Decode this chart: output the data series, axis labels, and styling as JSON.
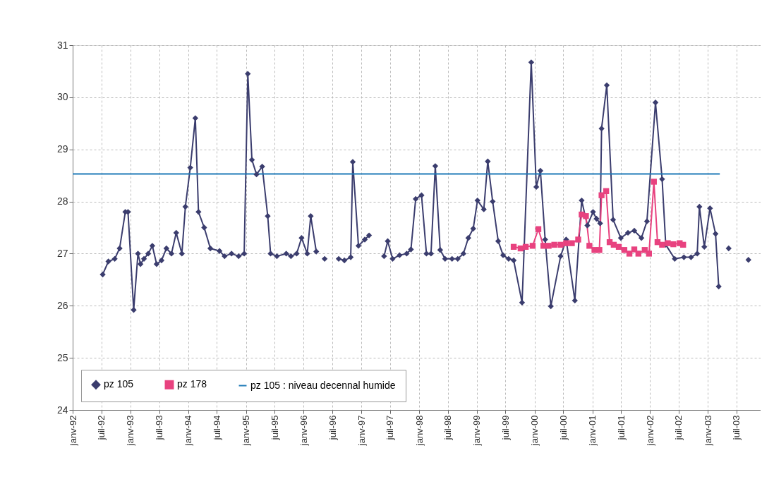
{
  "chart_data": {
    "type": "line",
    "ylim": [
      24,
      31
    ],
    "yticks": [
      24,
      25,
      26,
      27,
      28,
      29,
      30,
      31
    ],
    "xlim": [
      "1992-01-01",
      "2003-12-01"
    ],
    "xticks": [
      {
        "value": "1992-01-01",
        "label": "janv-92"
      },
      {
        "value": "1992-07-01",
        "label": "juil-92"
      },
      {
        "value": "1993-01-01",
        "label": "janv-93"
      },
      {
        "value": "1993-07-01",
        "label": "juil-93"
      },
      {
        "value": "1994-01-01",
        "label": "janv-94"
      },
      {
        "value": "1994-07-01",
        "label": "juil-94"
      },
      {
        "value": "1995-01-01",
        "label": "janv-95"
      },
      {
        "value": "1995-07-01",
        "label": "juil-95"
      },
      {
        "value": "1996-01-01",
        "label": "janv-96"
      },
      {
        "value": "1996-07-01",
        "label": "juil-96"
      },
      {
        "value": "1997-01-01",
        "label": "janv-97"
      },
      {
        "value": "1997-07-01",
        "label": "juil-97"
      },
      {
        "value": "1998-01-01",
        "label": "janv-98"
      },
      {
        "value": "1998-07-01",
        "label": "juil-98"
      },
      {
        "value": "1999-01-01",
        "label": "janv-99"
      },
      {
        "value": "1999-07-01",
        "label": "juil-99"
      },
      {
        "value": "2000-01-01",
        "label": "janv-00"
      },
      {
        "value": "2000-07-01",
        "label": "juil-00"
      },
      {
        "value": "2001-01-01",
        "label": "janv-01"
      },
      {
        "value": "2001-07-01",
        "label": "juil-01"
      },
      {
        "value": "2002-01-01",
        "label": "janv-02"
      },
      {
        "value": "2002-07-01",
        "label": "juil-02"
      },
      {
        "value": "2003-01-01",
        "label": "janv-03"
      },
      {
        "value": "2003-07-01",
        "label": "juil-03"
      }
    ],
    "grid": true,
    "legend": "bottom left",
    "line_style": "solid",
    "series": [
      {
        "name": "pz 105",
        "color": "#3b3d6e",
        "marker": "diamond",
        "x": [
          "1992-07-09",
          "1992-08-14",
          "1992-09-23",
          "1992-10-24",
          "1992-11-29",
          "1992-12-16",
          "1993-01-21",
          "1993-02-17",
          "1993-03-05",
          "1993-03-27",
          "1993-04-23",
          "1993-05-19",
          "1993-06-15",
          "1993-07-16",
          "1993-08-16",
          "1993-09-17",
          "1993-10-17",
          "1993-11-22",
          "1993-12-14",
          "1994-01-14",
          "1994-02-15",
          "1994-03-07",
          "1994-04-12",
          "1994-05-21",
          "1994-07-18",
          "1994-08-19",
          "1994-10-02",
          "1994-11-16",
          "1994-12-21",
          "1995-01-13",
          "1995-02-08",
          "1995-03-09",
          "1995-04-14",
          "1995-05-19",
          "1995-06-06",
          "1995-07-16",
          "1995-09-13",
          "1995-10-13",
          "1995-11-18",
          "1995-12-19",
          "1996-01-24",
          "1996-02-15",
          "1996-03-21",
          "1996-04-15",
          "1996-05-13",
          "1996-06-20",
          "1996-08-10",
          "1996-09-15",
          "1996-10-25",
          "1996-11-07",
          "1996-12-13",
          "1997-01-22",
          "1997-02-18",
          "1997-04-05",
          "1997-05-24",
          "1997-06-16",
          "1997-07-17",
          "1997-08-30",
          "1997-10-14",
          "1997-11-10",
          "1997-12-10",
          "1998-01-16",
          "1998-02-16",
          "1998-03-17",
          "1998-04-13",
          "1998-05-14",
          "1998-06-14",
          "1998-07-28",
          "1998-09-02",
          "1998-10-08",
          "1998-11-08",
          "1998-12-09",
          "1999-01-05",
          "1999-02-14",
          "1999-03-11",
          "1999-04-11",
          "1999-05-16",
          "1999-06-16",
          "1999-07-21",
          "1999-08-22",
          "1999-10-14",
          "1999-12-11",
          "2000-01-12",
          "2000-02-07",
          "2000-03-08",
          "2000-04-13",
          "2000-06-14",
          "2000-07-19",
          "2000-09-12",
          "2000-10-25",
          "2000-11-30",
          "2001-01-05",
          "2001-01-27",
          "2001-02-19",
          "2001-02-28",
          "2001-04-02",
          "2001-05-12",
          "2001-06-30",
          "2001-08-14",
          "2001-09-23",
          "2001-11-07",
          "2001-12-12",
          "2002-02-04",
          "2002-03-18",
          "2002-04-10",
          "2002-06-06",
          "2002-08-03",
          "2002-09-17",
          "2002-10-26",
          "2002-11-09",
          "2002-12-10",
          "2003-01-15",
          "2003-02-19",
          "2003-03-11",
          "2003-04-10",
          "2003-05-13",
          "2003-07-10",
          "2003-09-15"
        ],
        "values": [
          26.6,
          26.85,
          26.9,
          27.1,
          27.8,
          27.8,
          25.92,
          27.0,
          26.8,
          26.9,
          27.0,
          27.15,
          26.8,
          26.87,
          27.1,
          27.0,
          27.4,
          27.0,
          27.9,
          28.65,
          29.6,
          27.8,
          27.5,
          27.1,
          27.05,
          26.95,
          27.0,
          26.95,
          27.0,
          30.45,
          28.8,
          28.52,
          28.67,
          27.72,
          27.0,
          26.95,
          27.0,
          26.95,
          27.0,
          27.3,
          27.0,
          27.72,
          27.04,
          null,
          26.9,
          null,
          26.9,
          26.87,
          26.93,
          28.76,
          27.15,
          27.27,
          27.35,
          null,
          26.95,
          27.24,
          26.9,
          26.97,
          27.0,
          27.08,
          28.05,
          28.12,
          27.0,
          27.0,
          28.68,
          27.07,
          26.9,
          26.9,
          26.9,
          27.0,
          27.3,
          27.48,
          28.02,
          27.85,
          28.77,
          28.0,
          27.24,
          26.97,
          26.9,
          26.87,
          26.06,
          30.67,
          28.28,
          28.59,
          27.27,
          25.99,
          26.95,
          27.27,
          26.1,
          28.02,
          27.54,
          27.8,
          27.67,
          27.58,
          29.4,
          30.23,
          27.65,
          27.3,
          27.4,
          27.44,
          27.3,
          27.62,
          29.9,
          28.43,
          27.17,
          26.9,
          26.93,
          26.93,
          27.0,
          27.9,
          27.13,
          27.87,
          27.38,
          26.37,
          null,
          27.1,
          null,
          26.88
        ]
      },
      {
        "name": "pz 178",
        "color": "#e8427f",
        "marker": "square",
        "x": [
          "1999-08-22",
          "1999-10-05",
          "1999-11-06",
          "1999-12-20",
          "2000-01-25",
          "2000-02-26",
          "2000-03-30",
          "2000-05-05",
          "2000-06-14",
          "2000-07-19",
          "2000-08-24",
          "2000-10-03",
          "2000-10-25",
          "2000-11-21",
          "2000-12-13",
          "2001-01-14",
          "2001-02-14",
          "2001-02-28",
          "2001-03-29",
          "2001-04-20",
          "2001-05-16",
          "2001-06-17",
          "2001-07-22",
          "2001-08-23",
          "2001-09-23",
          "2001-10-19",
          "2001-11-28",
          "2001-12-25",
          "2002-01-25",
          "2002-02-17",
          "2002-03-18",
          "2002-04-23",
          "2002-05-28",
          "2002-07-07",
          "2002-07-29"
        ],
        "values": [
          27.13,
          27.1,
          27.13,
          27.15,
          27.47,
          27.15,
          27.15,
          27.17,
          27.17,
          27.2,
          27.2,
          27.27,
          27.75,
          27.72,
          27.15,
          27.07,
          27.07,
          28.12,
          28.2,
          27.22,
          27.17,
          27.13,
          27.07,
          27.0,
          27.08,
          27.0,
          27.07,
          27.0,
          28.38,
          27.22,
          27.17,
          27.2,
          27.18,
          27.2,
          27.17
        ]
      },
      {
        "name": "pz 105 : niveau decennal humide",
        "color": "#1f7bb8",
        "marker": "none",
        "x": [
          "1992-01-01",
          "2003-03-18"
        ],
        "values": [
          28.53,
          28.53
        ]
      }
    ]
  }
}
